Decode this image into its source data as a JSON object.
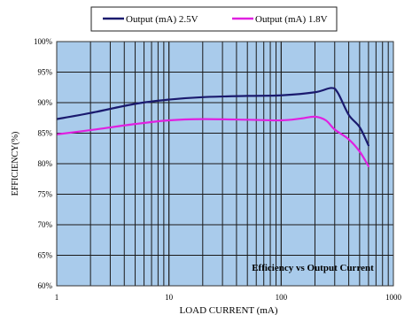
{
  "chart_data": {
    "type": "line",
    "xscale": "log",
    "xlim": [
      1,
      1000
    ],
    "ylim": [
      60,
      100
    ],
    "xlabel": "LOAD CURRENT (mA)",
    "ylabel": "EFFICIENCY(%)",
    "annotation": "Efficiency vs Output Current",
    "grid": true,
    "legend_position": "top",
    "plot_background": "#A9CBEB",
    "x_ticks": [
      {
        "value": 1,
        "label": "1"
      },
      {
        "value": 10,
        "label": "10"
      },
      {
        "value": 100,
        "label": "100"
      },
      {
        "value": 1000,
        "label": "1000"
      }
    ],
    "y_ticks": [
      {
        "value": 60,
        "label": "60%"
      },
      {
        "value": 65,
        "label": "65%"
      },
      {
        "value": 70,
        "label": "70%"
      },
      {
        "value": 75,
        "label": "75%"
      },
      {
        "value": 80,
        "label": "80%"
      },
      {
        "value": 85,
        "label": "85%"
      },
      {
        "value": 90,
        "label": "90%"
      },
      {
        "value": 95,
        "label": "95%"
      },
      {
        "value": 100,
        "label": "100%"
      }
    ],
    "series": [
      {
        "name": "Output (mA) 2.5V",
        "color": "#1A1A6E",
        "x": [
          1,
          2,
          5,
          10,
          20,
          50,
          100,
          200,
          280,
          320,
          400,
          500,
          600
        ],
        "y": [
          87.3,
          88.3,
          89.8,
          90.5,
          90.9,
          91.1,
          91.2,
          91.7,
          92.4,
          91.6,
          88.0,
          86.0,
          83.0
        ]
      },
      {
        "name": "Output (mA) 1.8V",
        "color": "#E020E0",
        "x": [
          1,
          2,
          5,
          10,
          20,
          50,
          100,
          150,
          200,
          250,
          300,
          400,
          500,
          600
        ],
        "y": [
          84.8,
          85.5,
          86.5,
          87.1,
          87.3,
          87.2,
          87.1,
          87.4,
          87.7,
          87.1,
          85.6,
          84.0,
          82.0,
          79.6
        ]
      }
    ]
  }
}
